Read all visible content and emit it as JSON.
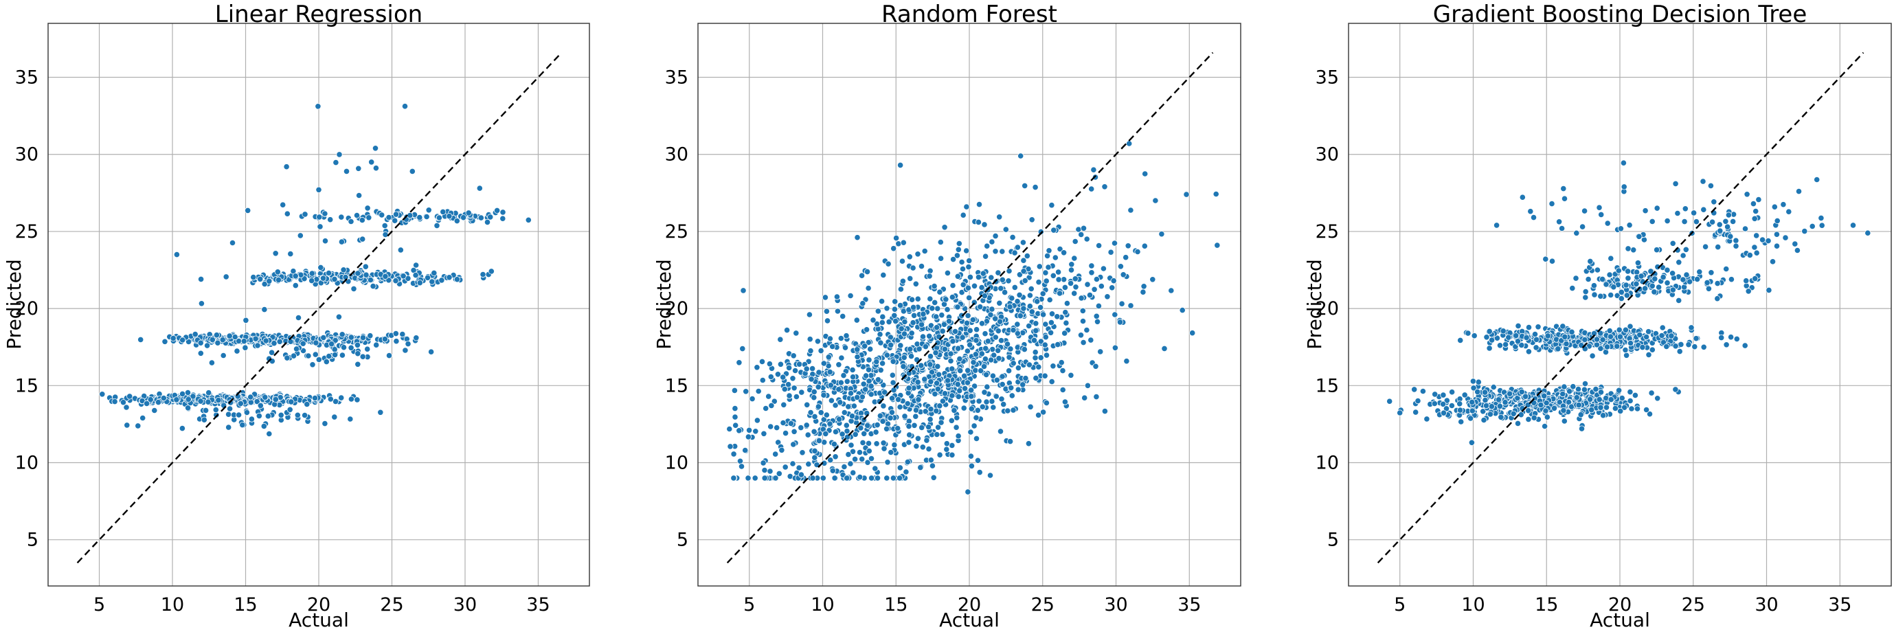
{
  "chart_data": [
    {
      "type": "scatter",
      "title": "Linear Regression",
      "xlabel": "Actual",
      "ylabel": "Predicted",
      "xlim": [
        1.5,
        38.5
      ],
      "ylim": [
        2,
        38.5
      ],
      "xticks": [
        5,
        10,
        15,
        20,
        25,
        30,
        35
      ],
      "yticks": [
        5,
        10,
        15,
        20,
        25,
        30,
        35
      ],
      "grid": true,
      "reference_line": {
        "from": [
          3.5,
          3.5
        ],
        "to": [
          36.6,
          36.6
        ],
        "style": "dashed",
        "color": "#000000"
      },
      "series_color": "#1f77b4",
      "clusters": [
        {
          "x_range": [
            3.5,
            24.5
          ],
          "y_center": 14.1,
          "y_jitter": 0.15,
          "count": 340,
          "x_peak": 13
        },
        {
          "x_range": [
            4.5,
            24.5
          ],
          "y_center": 13.2,
          "y_jitter": 0.5,
          "count": 70,
          "x_peak": 15
        },
        {
          "x_range": [
            7.0,
            29.5
          ],
          "y_center": 18.0,
          "y_jitter": 0.15,
          "count": 330,
          "x_peak": 17
        },
        {
          "x_range": [
            8.0,
            29.0
          ],
          "y_center": 17.3,
          "y_jitter": 0.5,
          "count": 70,
          "x_peak": 20
        },
        {
          "x_range": [
            10.0,
            34.5
          ],
          "y_center": 22.0,
          "y_jitter": 0.2,
          "count": 190,
          "x_peak": 22
        },
        {
          "x_range": [
            14.0,
            36.5
          ],
          "y_center": 26.0,
          "y_jitter": 0.2,
          "count": 90,
          "x_peak": 28
        },
        {
          "x_range": [
            9.5,
            33.0
          ],
          "y_center": 24.5,
          "y_jitter": 3.5,
          "count": 45,
          "x_peak": 22
        }
      ],
      "points_explicit": [
        [
          17.8,
          29.2
        ],
        [
          23.6,
          29.5
        ],
        [
          21.9,
          28.9
        ],
        [
          26.4,
          28.9
        ],
        [
          31.0,
          27.8
        ],
        [
          10.3,
          23.5
        ],
        [
          20.0,
          27.7
        ]
      ]
    },
    {
      "type": "scatter",
      "title": "Random Forest",
      "xlabel": "Actual",
      "ylabel": "Predicted",
      "xlim": [
        1.5,
        38.5
      ],
      "ylim": [
        2,
        38.5
      ],
      "xticks": [
        5,
        10,
        15,
        20,
        25,
        30,
        35
      ],
      "yticks": [
        5,
        10,
        15,
        20,
        25,
        30,
        35
      ],
      "grid": true,
      "reference_line": {
        "from": [
          3.5,
          3.5
        ],
        "to": [
          36.6,
          36.6
        ],
        "style": "dashed",
        "color": "#000000"
      },
      "series_color": "#1f77b4",
      "cloud": {
        "x_range": [
          3.5,
          37.0
        ],
        "x_peak": 17,
        "x_spread": 6.0,
        "y_base": 10.2,
        "y_slope": 0.36,
        "y_spread": 3.3,
        "count": 1500
      },
      "points_explicit": [
        [
          19.9,
          8.1
        ],
        [
          15.3,
          29.3
        ],
        [
          30.9,
          30.7
        ],
        [
          23.5,
          29.9
        ],
        [
          34.8,
          27.4
        ],
        [
          36.9,
          24.1
        ],
        [
          33.3,
          17.4
        ]
      ]
    },
    {
      "type": "scatter",
      "title": "Gradient Boosting Decision Tree",
      "xlabel": "Actual",
      "ylabel": "Predicted",
      "xlim": [
        1.5,
        38.5
      ],
      "ylim": [
        2,
        38.5
      ],
      "xticks": [
        5,
        10,
        15,
        20,
        25,
        30,
        35
      ],
      "yticks": [
        5,
        10,
        15,
        20,
        25,
        30,
        35
      ],
      "grid": true,
      "reference_line": {
        "from": [
          3.5,
          3.5
        ],
        "to": [
          36.6,
          36.6
        ],
        "style": "dashed",
        "color": "#000000"
      },
      "series_color": "#1f77b4",
      "clusters": [
        {
          "x_range": [
            3.5,
            24.5
          ],
          "y_center": 14.0,
          "y_jitter": 0.45,
          "count": 420,
          "x_peak": 15
        },
        {
          "x_range": [
            5.0,
            23.0
          ],
          "y_center": 13.2,
          "y_jitter": 0.4,
          "count": 50,
          "x_peak": 14
        },
        {
          "x_range": [
            7.0,
            29.5
          ],
          "y_center": 18.0,
          "y_jitter": 0.35,
          "count": 380,
          "x_peak": 18
        },
        {
          "x_range": [
            14.0,
            34.0
          ],
          "y_center": 21.7,
          "y_jitter": 0.6,
          "count": 150,
          "x_peak": 22
        },
        {
          "x_range": [
            10.0,
            36.5
          ],
          "y_center": 25.3,
          "y_jitter": 1.3,
          "count": 110,
          "x_peak": 27
        }
      ],
      "points_explicit": [
        [
          9.9,
          11.3
        ],
        [
          17.4,
          12.2
        ],
        [
          11.6,
          25.4
        ],
        [
          13.9,
          26.3
        ],
        [
          23.8,
          28.1
        ],
        [
          32.2,
          27.6
        ],
        [
          35.9,
          25.4
        ],
        [
          36.9,
          24.9
        ]
      ]
    }
  ]
}
